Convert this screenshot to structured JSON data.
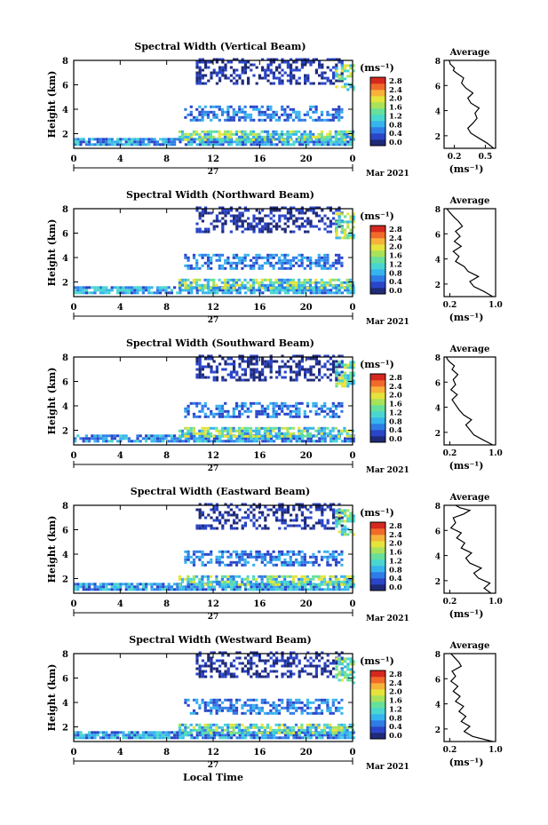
{
  "figure": {
    "date_label": "Mar 2021",
    "day_label": "27",
    "xlabel": "Local Time",
    "colorbar_unit": "(ms⁻¹)",
    "colorbar_ticks": [
      "0.0",
      "0.4",
      "0.8",
      "1.2",
      "1.6",
      "2.0",
      "2.4",
      "2.8"
    ],
    "colormap": [
      "#1f2a78",
      "#2a45c8",
      "#2f7ce6",
      "#36b4ee",
      "#49d6d0",
      "#66e09a",
      "#a8e25a",
      "#e6e33b",
      "#f7b23a",
      "#f26a2a",
      "#d6281e"
    ]
  },
  "chart_data": [
    {
      "type": "heatmap",
      "title": "Spectral Width (Vertical Beam)",
      "ylabel": "Height (km)",
      "xlim": [
        0,
        24
      ],
      "xticks": [
        "0",
        "4",
        "8",
        "12",
        "16",
        "20",
        "0"
      ],
      "ylim": [
        0.8,
        8
      ],
      "yticks": [
        "2",
        "4",
        "6",
        "8"
      ],
      "avg": {
        "title": "Average",
        "xlabel": "(ms⁻¹)",
        "xlim": [
          0.1,
          0.6
        ],
        "xticks": [
          "0.2",
          "0.5"
        ],
        "ylim": [
          1,
          8
        ],
        "yticks": [
          "2",
          "4",
          "6",
          "8"
        ],
        "x": [
          0.58,
          0.52,
          0.44,
          0.36,
          0.33,
          0.38,
          0.42,
          0.4,
          0.44,
          0.36,
          0.33,
          0.38,
          0.31,
          0.27,
          0.29,
          0.22,
          0.19,
          0.2,
          0.16,
          0.15
        ],
        "y": [
          1.0,
          1.4,
          1.8,
          2.2,
          2.6,
          3.0,
          3.4,
          3.8,
          4.2,
          4.6,
          5.0,
          5.4,
          5.8,
          6.2,
          6.6,
          7.0,
          7.2,
          7.4,
          7.7,
          8.0
        ]
      }
    },
    {
      "type": "heatmap",
      "title": "Spectral Width (Northward Beam)",
      "ylabel": "Height (km)",
      "xlim": [
        0,
        24
      ],
      "xticks": [
        "0",
        "4",
        "8",
        "12",
        "16",
        "20",
        "0"
      ],
      "ylim": [
        0.8,
        8
      ],
      "yticks": [
        "2",
        "4",
        "6",
        "8"
      ],
      "avg": {
        "title": "Average",
        "xlabel": "(ms⁻¹)",
        "xlim": [
          0.1,
          1.0
        ],
        "xticks": [
          "0.2",
          "1.0"
        ],
        "ylim": [
          1,
          8
        ],
        "yticks": [
          "2",
          "4",
          "6",
          "8"
        ],
        "x": [
          0.95,
          0.8,
          0.62,
          0.55,
          0.7,
          0.52,
          0.45,
          0.3,
          0.36,
          0.26,
          0.4,
          0.28,
          0.38,
          0.3,
          0.42,
          0.35,
          0.28,
          0.22,
          0.18,
          0.15
        ],
        "y": [
          1.0,
          1.4,
          1.8,
          2.2,
          2.6,
          3.0,
          3.4,
          3.8,
          4.2,
          4.6,
          5.0,
          5.4,
          5.8,
          6.2,
          6.6,
          7.0,
          7.3,
          7.6,
          7.8,
          8.0
        ]
      }
    },
    {
      "type": "heatmap",
      "title": "Spectral Width (Southward Beam)",
      "ylabel": "Height (km)",
      "xlim": [
        0,
        24
      ],
      "xticks": [
        "0",
        "4",
        "8",
        "12",
        "16",
        "20",
        "0"
      ],
      "ylim": [
        0.8,
        8
      ],
      "yticks": [
        "2",
        "4",
        "6",
        "8"
      ],
      "avg": {
        "title": "Average",
        "xlabel": "(ms⁻¹)",
        "xlim": [
          0.1,
          1.0
        ],
        "xticks": [
          "0.2",
          "1.0"
        ],
        "ylim": [
          1,
          8
        ],
        "yticks": [
          "2",
          "4",
          "6",
          "8"
        ],
        "x": [
          0.95,
          0.78,
          0.62,
          0.55,
          0.48,
          0.58,
          0.44,
          0.36,
          0.3,
          0.24,
          0.33,
          0.22,
          0.3,
          0.26,
          0.34,
          0.24,
          0.28,
          0.2,
          0.16,
          0.14
        ],
        "y": [
          1.0,
          1.4,
          1.8,
          2.2,
          2.6,
          3.0,
          3.4,
          3.8,
          4.2,
          4.6,
          5.0,
          5.4,
          5.8,
          6.2,
          6.6,
          7.0,
          7.3,
          7.6,
          7.8,
          8.0
        ]
      }
    },
    {
      "type": "heatmap",
      "title": "Spectral Width (Eastward Beam)",
      "ylabel": "Height (km)",
      "xlim": [
        0,
        24
      ],
      "xticks": [
        "0",
        "4",
        "8",
        "12",
        "16",
        "20",
        "0"
      ],
      "ylim": [
        0.8,
        8
      ],
      "yticks": [
        "2",
        "4",
        "6",
        "8"
      ],
      "avg": {
        "title": "Average",
        "xlabel": "(ms⁻¹)",
        "xlim": [
          0.1,
          1.0
        ],
        "xticks": [
          "0.2",
          "1.0"
        ],
        "ylim": [
          1,
          8
        ],
        "yticks": [
          "2",
          "4",
          "6",
          "8"
        ],
        "x": [
          0.92,
          0.8,
          0.9,
          0.7,
          0.62,
          0.75,
          0.55,
          0.48,
          0.58,
          0.4,
          0.46,
          0.32,
          0.4,
          0.22,
          0.3,
          0.26,
          0.44,
          0.55,
          0.38,
          0.3
        ],
        "y": [
          1.0,
          1.4,
          1.8,
          2.2,
          2.6,
          3.0,
          3.4,
          3.8,
          4.2,
          4.6,
          5.0,
          5.4,
          5.8,
          6.2,
          6.6,
          7.0,
          7.3,
          7.6,
          7.8,
          8.0
        ]
      }
    },
    {
      "type": "heatmap",
      "title": "Spectral Width (Westward Beam)",
      "ylabel": "Height (km)",
      "xlim": [
        0,
        24
      ],
      "xticks": [
        "0",
        "4",
        "8",
        "12",
        "16",
        "20",
        "0"
      ],
      "ylim": [
        0.8,
        8
      ],
      "yticks": [
        "2",
        "4",
        "6",
        "8"
      ],
      "avg": {
        "title": "Average",
        "xlabel": "(ms⁻¹)",
        "xlim": [
          0.1,
          1.0
        ],
        "xticks": [
          "0.2",
          "1.0"
        ],
        "ylim": [
          1,
          8
        ],
        "yticks": [
          "2",
          "4",
          "6",
          "8"
        ],
        "x": [
          0.95,
          0.6,
          0.45,
          0.55,
          0.4,
          0.48,
          0.36,
          0.44,
          0.3,
          0.38,
          0.26,
          0.34,
          0.22,
          0.3,
          0.24,
          0.4,
          0.36,
          0.3,
          0.26,
          0.22
        ],
        "y": [
          1.0,
          1.4,
          1.8,
          2.2,
          2.6,
          3.0,
          3.4,
          3.8,
          4.2,
          4.6,
          5.0,
          5.4,
          5.8,
          6.2,
          6.6,
          7.0,
          7.3,
          7.6,
          7.8,
          8.0
        ]
      }
    }
  ]
}
